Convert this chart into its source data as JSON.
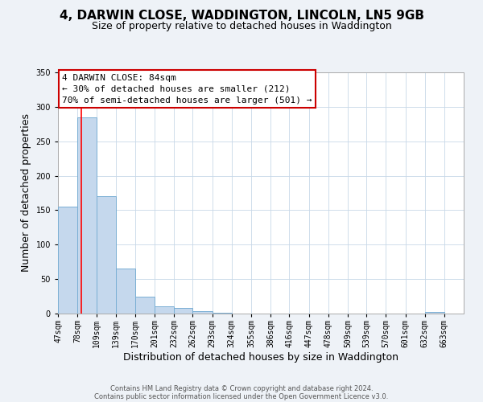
{
  "title": "4, DARWIN CLOSE, WADDINGTON, LINCOLN, LN5 9GB",
  "subtitle": "Size of property relative to detached houses in Waddington",
  "xlabel": "Distribution of detached houses by size in Waddington",
  "ylabel": "Number of detached properties",
  "bin_labels": [
    "47sqm",
    "78sqm",
    "109sqm",
    "139sqm",
    "170sqm",
    "201sqm",
    "232sqm",
    "262sqm",
    "293sqm",
    "324sqm",
    "355sqm",
    "386sqm",
    "416sqm",
    "447sqm",
    "478sqm",
    "509sqm",
    "539sqm",
    "570sqm",
    "601sqm",
    "632sqm",
    "663sqm"
  ],
  "bin_edges": [
    47,
    78,
    109,
    139,
    170,
    201,
    232,
    262,
    293,
    324,
    355,
    386,
    416,
    447,
    478,
    509,
    539,
    570,
    601,
    632,
    663,
    694
  ],
  "bar_heights": [
    155,
    285,
    170,
    65,
    25,
    10,
    8,
    3,
    1,
    0,
    0,
    0,
    0,
    0,
    0,
    0,
    0,
    0,
    0,
    2,
    0
  ],
  "bar_color": "#c5d8ed",
  "bar_edge_color": "#7aafd4",
  "red_line_x": 84,
  "ylim": [
    0,
    350
  ],
  "yticks": [
    0,
    50,
    100,
    150,
    200,
    250,
    300,
    350
  ],
  "annotation_title": "4 DARWIN CLOSE: 84sqm",
  "annotation_line1": "← 30% of detached houses are smaller (212)",
  "annotation_line2": "70% of semi-detached houses are larger (501) →",
  "annotation_box_color": "#ffffff",
  "annotation_box_edge_color": "#cc0000",
  "footer_line1": "Contains HM Land Registry data © Crown copyright and database right 2024.",
  "footer_line2": "Contains public sector information licensed under the Open Government Licence v3.0.",
  "title_fontsize": 11,
  "subtitle_fontsize": 9,
  "xlabel_fontsize": 9,
  "ylabel_fontsize": 9,
  "tick_fontsize": 7,
  "annotation_fontsize": 8,
  "footer_fontsize": 6,
  "background_color": "#eef2f7",
  "plot_bg_color": "#ffffff",
  "grid_color": "#c8d8e8"
}
